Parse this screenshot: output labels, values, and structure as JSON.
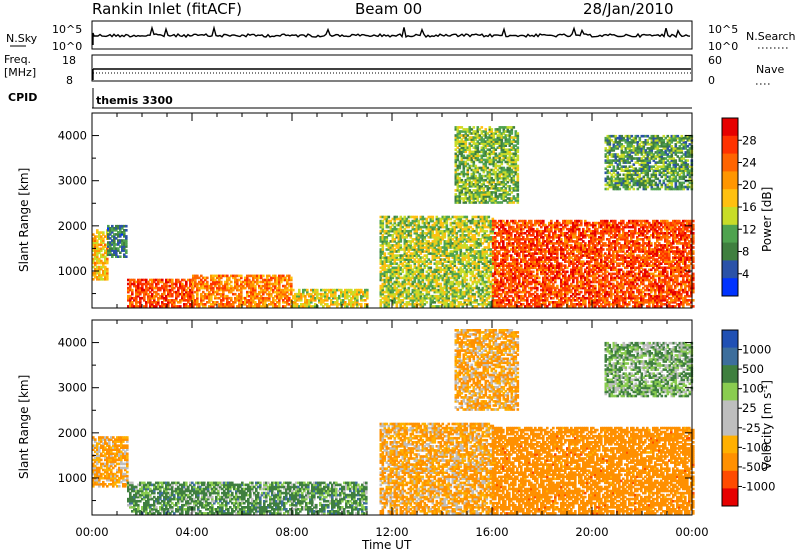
{
  "header": {
    "title": "Rankin Inlet (fitACF)",
    "beam": "Beam 00",
    "date": "28/Jan/2010"
  },
  "strip_panels": {
    "nsky": {
      "label": "N.Sky",
      "left_ticks": [
        "10^5",
        "10^0"
      ],
      "right_ticks": [
        "10^5",
        "10^0"
      ],
      "right_label": "N.Search"
    },
    "freq": {
      "label_line1": "Freq.",
      "label_line2": "[MHz]",
      "left_ticks": [
        "18",
        "8"
      ],
      "right_ticks": [
        "60",
        "0"
      ],
      "right_label": "Nave"
    },
    "cpid": {
      "label": "CPID",
      "value": "themis 3300"
    }
  },
  "colors": {
    "power": [
      "#0033ff",
      "#2a52a8",
      "#3f7f3f",
      "#4fa34f",
      "#c8dc28",
      "#ffc010",
      "#ff9600",
      "#ff6400",
      "#ff3200",
      "#e60000"
    ],
    "velocity": [
      "#e60000",
      "#ff4b00",
      "#ff9000",
      "#ffb000",
      "#bebebe",
      "#bebebe",
      "#8acc50",
      "#3f7f3f",
      "#3d6e9c",
      "#2050b4"
    ]
  },
  "chart_data": [
    {
      "type": "heatmap",
      "title": "",
      "xlabel": "Time UT",
      "ylabel": "Slant Range [km]",
      "x_tick_labels": [
        "00:00",
        "04:00",
        "08:00",
        "12:00",
        "16:00",
        "20:00",
        "00:00"
      ],
      "y_tick_labels": [
        "1000",
        "2000",
        "3000",
        "4000"
      ],
      "xlim_hours": [
        0,
        24
      ],
      "ylim_km": [
        180,
        4500
      ],
      "colorbar_label": "Power [dB]",
      "colorbar_ticks": [
        "28",
        "24",
        "20",
        "16",
        "12",
        "8",
        "4"
      ],
      "colorbar_range": [
        0,
        32
      ],
      "echo_regions": [
        {
          "t0": 0.0,
          "t1": 0.6,
          "r0": 800,
          "r1": 1900,
          "value": 18
        },
        {
          "t0": 0.6,
          "t1": 1.4,
          "r0": 1300,
          "r1": 2000,
          "value": 8
        },
        {
          "t0": 1.4,
          "t1": 4.0,
          "r0": 200,
          "r1": 800,
          "value": 26
        },
        {
          "t0": 4.0,
          "t1": 8.0,
          "r0": 200,
          "r1": 900,
          "value": 22
        },
        {
          "t0": 8.0,
          "t1": 11.0,
          "r0": 200,
          "r1": 600,
          "value": 16
        },
        {
          "t0": 11.5,
          "t1": 16.0,
          "r0": 200,
          "r1": 2200,
          "value": 14
        },
        {
          "t0": 14.5,
          "t1": 17.0,
          "r0": 2500,
          "r1": 4200,
          "value": 12
        },
        {
          "t0": 16.0,
          "t1": 24.0,
          "r0": 200,
          "r1": 2100,
          "value": 26
        },
        {
          "t0": 20.5,
          "t1": 24.0,
          "r0": 2800,
          "r1": 4000,
          "value": 10
        }
      ]
    },
    {
      "type": "heatmap",
      "title": "",
      "xlabel": "Time UT",
      "ylabel": "Slant Range [km]",
      "x_tick_labels": [
        "00:00",
        "04:00",
        "08:00",
        "12:00",
        "16:00",
        "20:00",
        "00:00"
      ],
      "y_tick_labels": [
        "1000",
        "2000",
        "3000",
        "4000"
      ],
      "xlim_hours": [
        0,
        24
      ],
      "ylim_km": [
        180,
        4500
      ],
      "colorbar_label": "Velocity [m s^-1]",
      "colorbar_ticks": [
        "1000",
        "500",
        "100",
        "25",
        "-25",
        "-100",
        "-500",
        "-1000"
      ],
      "echo_regions": [
        {
          "t0": 0.0,
          "t1": 1.4,
          "r0": 800,
          "r1": 1900,
          "value": -100
        },
        {
          "t0": 1.4,
          "t1": 11.0,
          "r0": 200,
          "r1": 900,
          "value": 50
        },
        {
          "t0": 11.5,
          "t1": 16.0,
          "r0": 200,
          "r1": 2200,
          "value": -100
        },
        {
          "t0": 14.5,
          "t1": 17.0,
          "r0": 2500,
          "r1": 4300,
          "value": -100
        },
        {
          "t0": 16.0,
          "t1": 24.0,
          "r0": 200,
          "r1": 2100,
          "value": -300
        },
        {
          "t0": 20.5,
          "t1": 24.0,
          "r0": 2800,
          "r1": 4000,
          "value": 20
        }
      ]
    }
  ]
}
